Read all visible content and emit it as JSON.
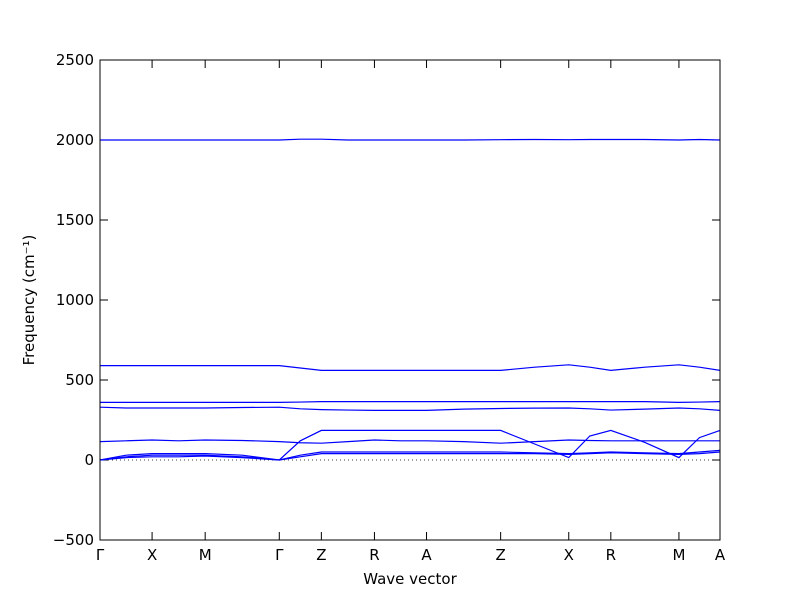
{
  "chart_data": {
    "type": "line",
    "xlabel": "Wave vector",
    "ylabel": "Frequency (cm⁻¹)",
    "x": [
      0,
      0.26,
      0.52,
      0.785,
      1.05,
      1.42,
      1.79,
      2.0,
      2.21,
      2.475,
      2.74,
      3.0,
      3.26,
      3.63,
      4.0,
      4.34,
      4.68,
      4.89,
      5.1,
      5.44,
      5.78,
      5.985,
      6.19
    ],
    "series": [
      {
        "color": "#0000ff",
        "values": [
          2000,
          2000,
          2000,
          2000,
          2000,
          2000,
          2000,
          2005,
          2005,
          2000,
          2000,
          2000,
          2000,
          2000,
          2002,
          2003,
          2002,
          2003,
          2003,
          2003,
          2000,
          2003,
          2000
        ]
      },
      {
        "color": "#0000ff",
        "values": [
          590,
          590,
          590,
          590,
          590,
          590,
          590,
          575,
          560,
          560,
          560,
          560,
          560,
          560,
          560,
          580,
          595,
          580,
          560,
          580,
          595,
          580,
          560
        ]
      },
      {
        "color": "#0000ff",
        "values": [
          360,
          360,
          360,
          360,
          360,
          360,
          360,
          362,
          365,
          365,
          365,
          365,
          365,
          365,
          365,
          365,
          365,
          365,
          365,
          365,
          360,
          362,
          365
        ]
      },
      {
        "color": "#0000ff",
        "values": [
          330,
          325,
          325,
          325,
          325,
          328,
          330,
          320,
          315,
          312,
          310,
          310,
          310,
          318,
          322,
          324,
          325,
          320,
          312,
          318,
          325,
          320,
          310
        ]
      },
      {
        "color": "#0000ff",
        "values": [
          115,
          120,
          125,
          120,
          125,
          122,
          115,
          108,
          105,
          115,
          125,
          120,
          120,
          115,
          105,
          115,
          125,
          122,
          120,
          120,
          120,
          120,
          120
        ]
      },
      {
        "color": "#0000ff",
        "values": [
          0,
          20,
          30,
          30,
          30,
          20,
          0,
          120,
          185,
          185,
          185,
          185,
          185,
          185,
          185,
          100,
          15,
          150,
          185,
          110,
          15,
          140,
          185
        ]
      },
      {
        "color": "#0000ff",
        "values": [
          0,
          30,
          40,
          40,
          40,
          30,
          0,
          30,
          50,
          50,
          50,
          50,
          50,
          50,
          50,
          45,
          40,
          45,
          50,
          45,
          40,
          50,
          60
        ]
      },
      {
        "color": "#0000ff",
        "values": [
          0,
          15,
          20,
          20,
          25,
          15,
          0,
          20,
          40,
          40,
          40,
          40,
          40,
          40,
          40,
          40,
          35,
          40,
          45,
          40,
          35,
          40,
          50
        ]
      }
    ],
    "xlim": [
      0,
      6.19
    ],
    "xticks": [
      {
        "value": 0,
        "label": "Γ"
      },
      {
        "value": 0.52,
        "label": "X"
      },
      {
        "value": 1.05,
        "label": "M"
      },
      {
        "value": 1.79,
        "label": "Γ"
      },
      {
        "value": 2.21,
        "label": "Z"
      },
      {
        "value": 2.74,
        "label": "R"
      },
      {
        "value": 3.26,
        "label": "A"
      },
      {
        "value": 4.0,
        "label": "Z"
      },
      {
        "value": 4.68,
        "label": "X"
      },
      {
        "value": 5.1,
        "label": "R"
      },
      {
        "value": 5.78,
        "label": "M"
      },
      {
        "value": 6.19,
        "label": "A"
      }
    ],
    "ylim": [
      -500,
      2500
    ],
    "yticks": [
      {
        "value": -500,
        "label": "−500"
      },
      0,
      500,
      1000,
      1500,
      2000,
      2500
    ],
    "zero_line": true
  }
}
